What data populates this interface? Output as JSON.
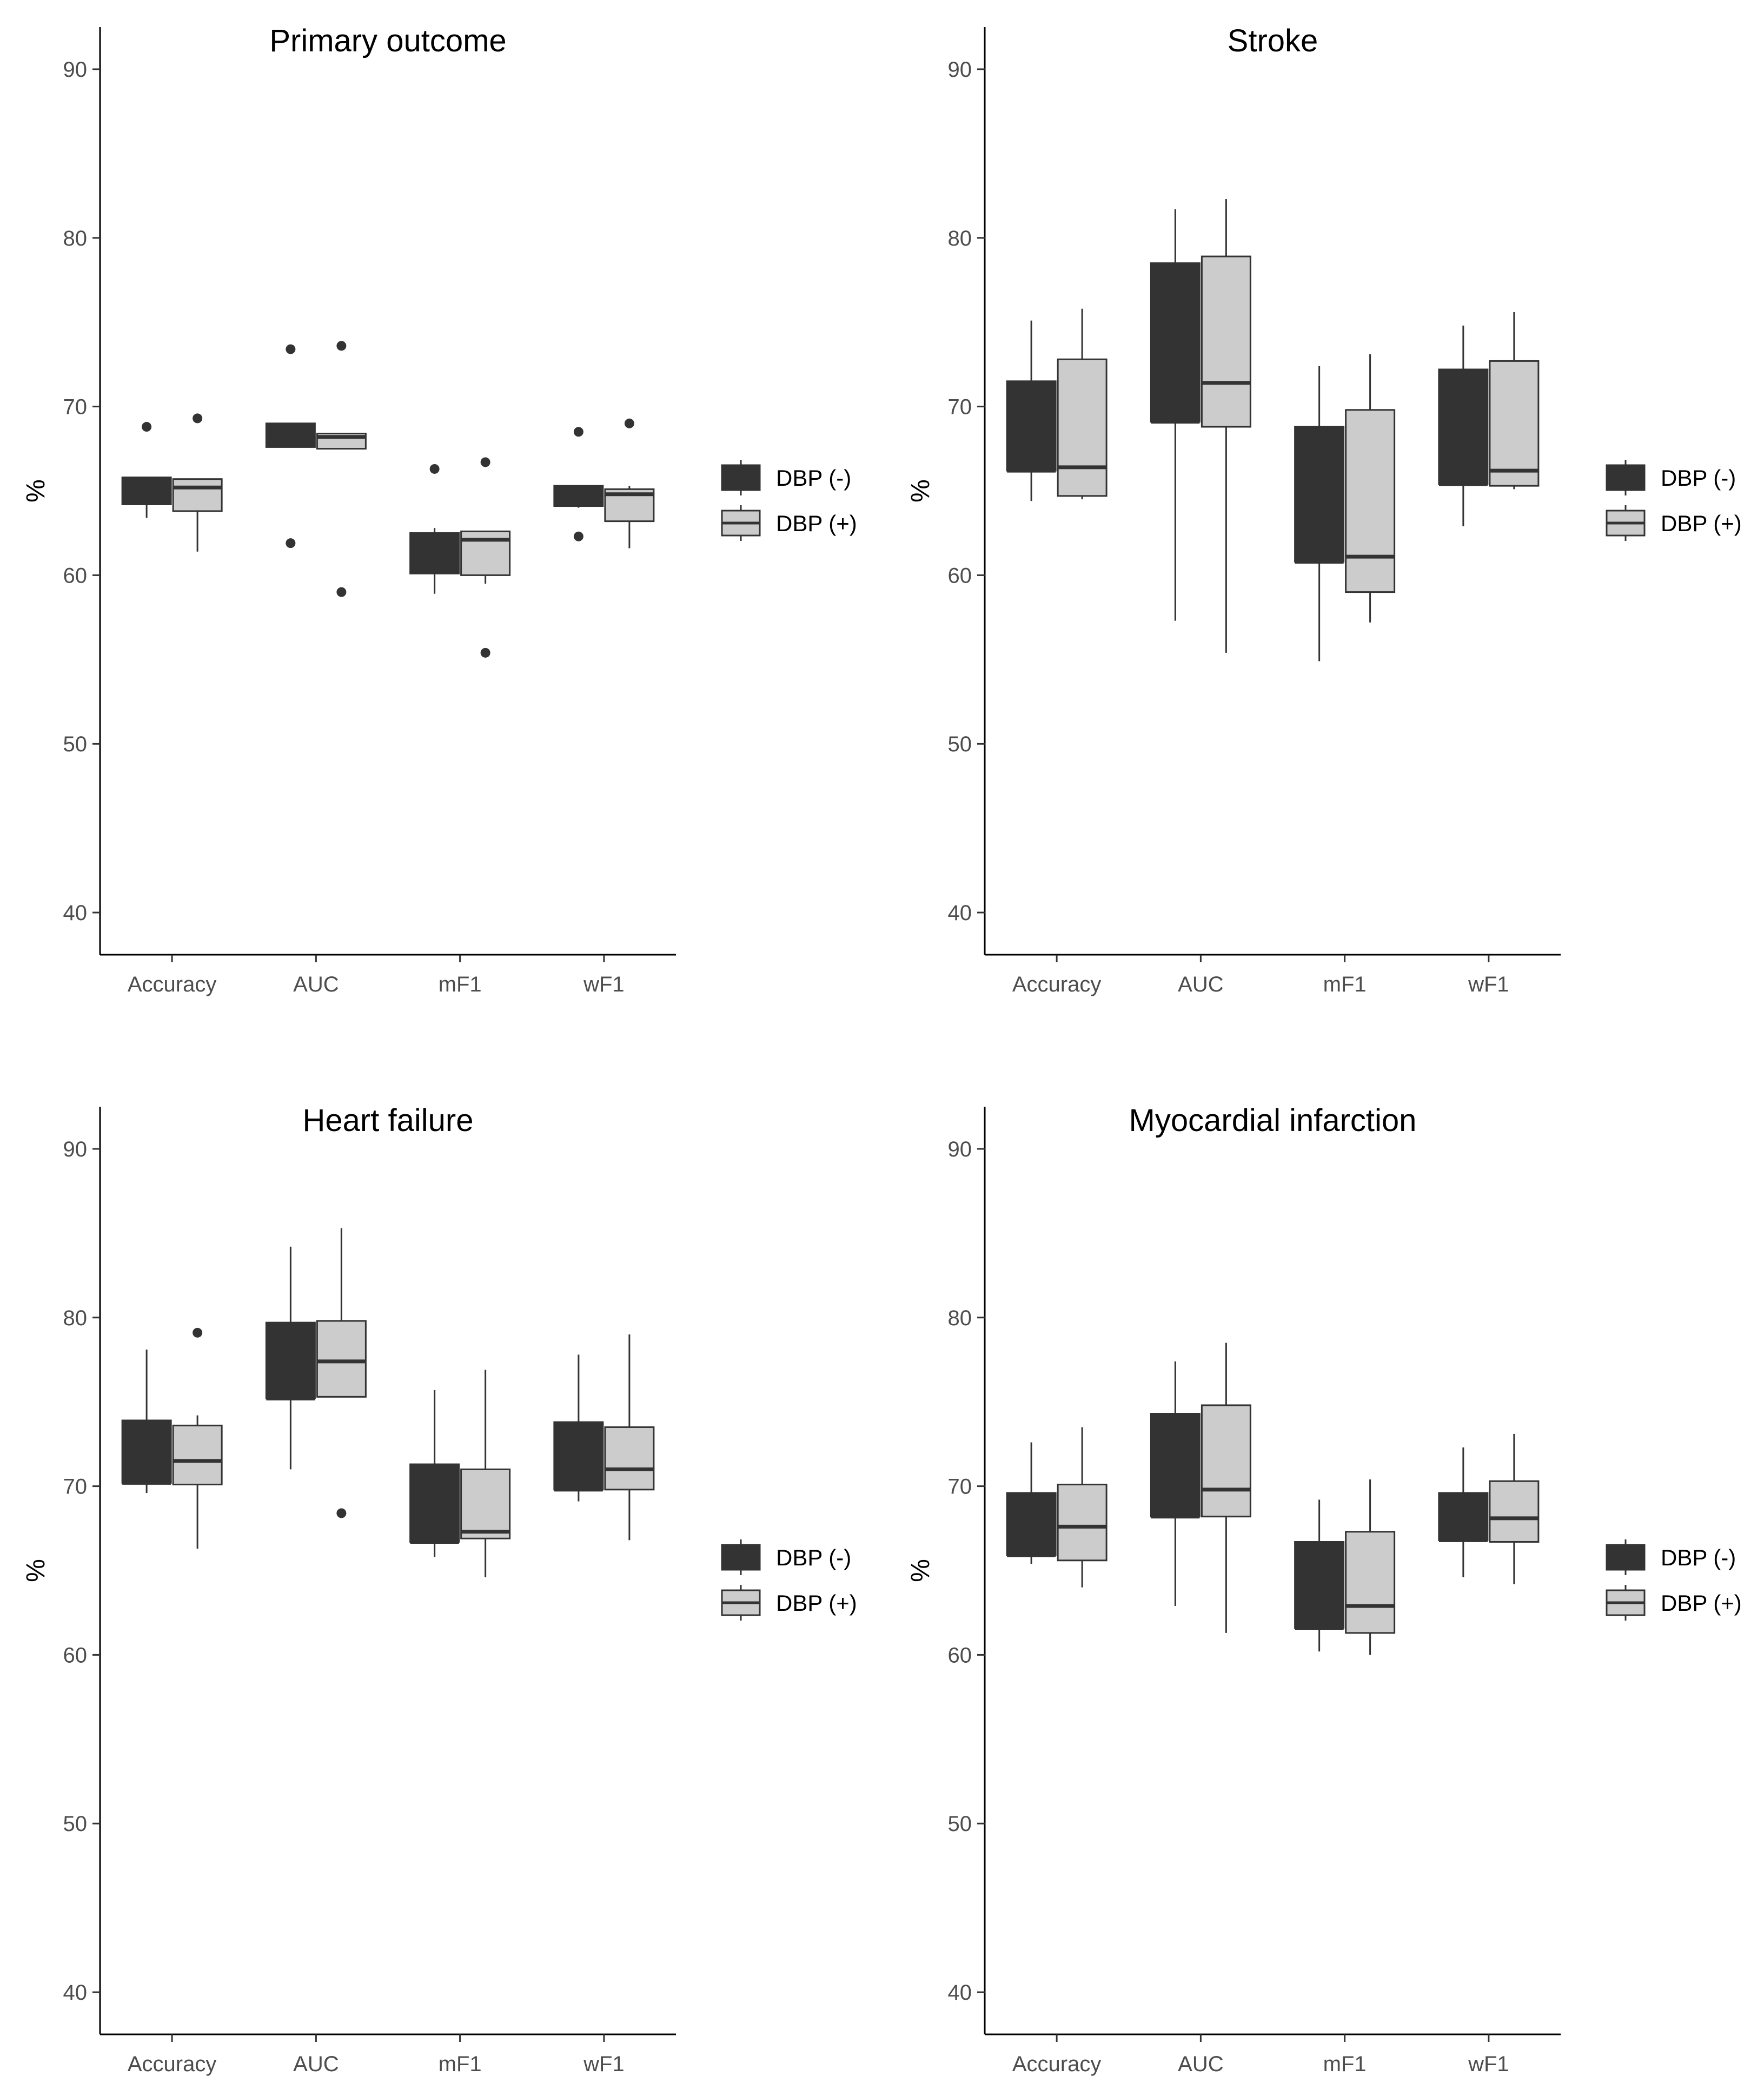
{
  "legend": {
    "items": [
      {
        "label": "DBP (-)",
        "fill": "#333333"
      },
      {
        "label": "DBP (+)",
        "fill": "#cccccc"
      }
    ],
    "position": "right"
  },
  "chart_data": [
    {
      "type": "boxplot",
      "title": "Primary outcome",
      "ylabel": "%",
      "xlabel": "",
      "ylim": [
        37.5,
        92.5
      ],
      "yticks": [
        40,
        50,
        60,
        70,
        80,
        90
      ],
      "categories": [
        "Accuracy",
        "AUC",
        "mF1",
        "wF1"
      ],
      "series": [
        {
          "name": "DBP (-)",
          "boxes": [
            {
              "whisker_low": 63.4,
              "q1": 64.2,
              "median": 65.2,
              "q3": 65.8,
              "whisker_high": 65.8,
              "outliers": [
                68.8
              ]
            },
            {
              "whisker_low": 67.6,
              "q1": 67.6,
              "median": 68.2,
              "q3": 69.0,
              "whisker_high": 69.0,
              "outliers": [
                73.4,
                61.9
              ]
            },
            {
              "whisker_low": 58.9,
              "q1": 60.1,
              "median": 61.2,
              "q3": 62.5,
              "whisker_high": 62.8,
              "outliers": [
                66.3
              ]
            },
            {
              "whisker_low": 64.0,
              "q1": 64.1,
              "median": 64.8,
              "q3": 65.3,
              "whisker_high": 65.3,
              "outliers": [
                68.5,
                62.3
              ]
            }
          ]
        },
        {
          "name": "DBP (+)",
          "boxes": [
            {
              "whisker_low": 61.4,
              "q1": 63.8,
              "median": 65.2,
              "q3": 65.7,
              "whisker_high": 65.7,
              "outliers": [
                69.3
              ]
            },
            {
              "whisker_low": 67.5,
              "q1": 67.5,
              "median": 68.2,
              "q3": 68.4,
              "whisker_high": 68.4,
              "outliers": [
                73.6,
                59.0
              ]
            },
            {
              "whisker_low": 59.5,
              "q1": 60.0,
              "median": 62.1,
              "q3": 62.6,
              "whisker_high": 62.6,
              "outliers": [
                66.7,
                55.4
              ]
            },
            {
              "whisker_low": 61.6,
              "q1": 63.2,
              "median": 64.8,
              "q3": 65.1,
              "whisker_high": 65.3,
              "outliers": [
                69.0
              ]
            }
          ]
        }
      ]
    },
    {
      "type": "boxplot",
      "title": "Stroke",
      "ylabel": "%",
      "xlabel": "",
      "ylim": [
        37.5,
        92.5
      ],
      "yticks": [
        40,
        50,
        60,
        70,
        80,
        90
      ],
      "categories": [
        "Accuracy",
        "AUC",
        "mF1",
        "wF1"
      ],
      "series": [
        {
          "name": "DBP (-)",
          "boxes": [
            {
              "whisker_low": 64.4,
              "q1": 66.2,
              "median": 66.2,
              "q3": 71.5,
              "whisker_high": 75.1,
              "outliers": []
            },
            {
              "whisker_low": 57.3,
              "q1": 69.1,
              "median": 69.1,
              "q3": 78.5,
              "whisker_high": 81.7,
              "outliers": []
            },
            {
              "whisker_low": 54.9,
              "q1": 60.8,
              "median": 60.8,
              "q3": 68.8,
              "whisker_high": 72.4,
              "outliers": []
            },
            {
              "whisker_low": 62.9,
              "q1": 65.4,
              "median": 65.4,
              "q3": 72.2,
              "whisker_high": 74.8,
              "outliers": []
            }
          ]
        },
        {
          "name": "DBP (+)",
          "boxes": [
            {
              "whisker_low": 64.5,
              "q1": 64.7,
              "median": 66.4,
              "q3": 72.8,
              "whisker_high": 75.8,
              "outliers": []
            },
            {
              "whisker_low": 55.4,
              "q1": 68.8,
              "median": 71.4,
              "q3": 78.9,
              "whisker_high": 82.3,
              "outliers": []
            },
            {
              "whisker_low": 57.2,
              "q1": 59.0,
              "median": 61.1,
              "q3": 69.8,
              "whisker_high": 73.1,
              "outliers": []
            },
            {
              "whisker_low": 65.1,
              "q1": 65.3,
              "median": 66.2,
              "q3": 72.7,
              "whisker_high": 75.6,
              "outliers": []
            }
          ]
        }
      ]
    },
    {
      "type": "boxplot",
      "title": "Heart failure",
      "ylabel": "%",
      "xlabel": "",
      "ylim": [
        37.5,
        92.5
      ],
      "yticks": [
        40,
        50,
        60,
        70,
        80,
        90
      ],
      "categories": [
        "Accuracy",
        "AUC",
        "mF1",
        "wF1"
      ],
      "series": [
        {
          "name": "DBP (-)",
          "boxes": [
            {
              "whisker_low": 69.6,
              "q1": 70.2,
              "median": 70.2,
              "q3": 73.9,
              "whisker_high": 78.1,
              "outliers": []
            },
            {
              "whisker_low": 71.0,
              "q1": 75.2,
              "median": 75.2,
              "q3": 79.7,
              "whisker_high": 84.2,
              "outliers": []
            },
            {
              "whisker_low": 65.8,
              "q1": 66.7,
              "median": 66.7,
              "q3": 71.3,
              "whisker_high": 75.7,
              "outliers": []
            },
            {
              "whisker_low": 69.1,
              "q1": 69.8,
              "median": 69.8,
              "q3": 73.8,
              "whisker_high": 77.8,
              "outliers": []
            }
          ]
        },
        {
          "name": "DBP (+)",
          "boxes": [
            {
              "whisker_low": 66.3,
              "q1": 70.1,
              "median": 71.5,
              "q3": 73.6,
              "whisker_high": 74.2,
              "outliers": [
                79.1
              ]
            },
            {
              "whisker_low": 75.3,
              "q1": 75.3,
              "median": 77.4,
              "q3": 79.8,
              "whisker_high": 85.3,
              "outliers": [
                68.4
              ]
            },
            {
              "whisker_low": 64.6,
              "q1": 66.9,
              "median": 67.3,
              "q3": 71.0,
              "whisker_high": 76.9,
              "outliers": []
            },
            {
              "whisker_low": 66.8,
              "q1": 69.8,
              "median": 71.0,
              "q3": 73.5,
              "whisker_high": 79.0,
              "outliers": []
            }
          ]
        }
      ]
    },
    {
      "type": "boxplot",
      "title": "Myocardial infarction",
      "ylabel": "%",
      "xlabel": "",
      "ylim": [
        37.5,
        92.5
      ],
      "yticks": [
        40,
        50,
        60,
        70,
        80,
        90
      ],
      "categories": [
        "Accuracy",
        "AUC",
        "mF1",
        "wF1"
      ],
      "series": [
        {
          "name": "DBP (-)",
          "boxes": [
            {
              "whisker_low": 65.4,
              "q1": 65.9,
              "median": 65.9,
              "q3": 69.6,
              "whisker_high": 72.6,
              "outliers": []
            },
            {
              "whisker_low": 62.9,
              "q1": 68.2,
              "median": 68.2,
              "q3": 74.3,
              "whisker_high": 77.4,
              "outliers": []
            },
            {
              "whisker_low": 60.2,
              "q1": 61.6,
              "median": 61.6,
              "q3": 66.7,
              "whisker_high": 69.2,
              "outliers": []
            },
            {
              "whisker_low": 64.6,
              "q1": 66.8,
              "median": 66.8,
              "q3": 69.6,
              "whisker_high": 72.3,
              "outliers": []
            }
          ]
        },
        {
          "name": "DBP (+)",
          "boxes": [
            {
              "whisker_low": 64.0,
              "q1": 65.6,
              "median": 67.6,
              "q3": 70.1,
              "whisker_high": 73.5,
              "outliers": []
            },
            {
              "whisker_low": 61.3,
              "q1": 68.2,
              "median": 69.8,
              "q3": 74.8,
              "whisker_high": 78.5,
              "outliers": []
            },
            {
              "whisker_low": 60.0,
              "q1": 61.3,
              "median": 62.9,
              "q3": 67.3,
              "whisker_high": 70.4,
              "outliers": []
            },
            {
              "whisker_low": 64.2,
              "q1": 66.7,
              "median": 68.1,
              "q3": 70.3,
              "whisker_high": 73.1,
              "outliers": []
            }
          ]
        }
      ]
    }
  ]
}
